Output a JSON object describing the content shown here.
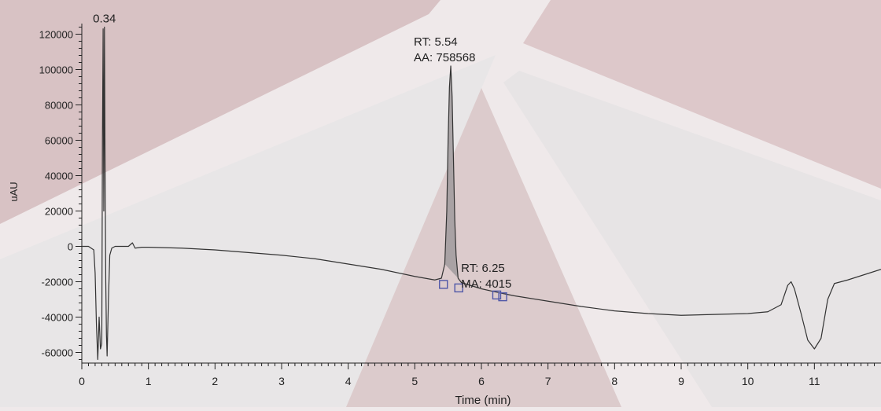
{
  "chart_data": {
    "type": "line",
    "title": "",
    "xlabel": "Time (min)",
    "ylabel": "uAU",
    "xlim": [
      0,
      12
    ],
    "ylim": [
      -66000,
      126000
    ],
    "x_ticks": [
      0,
      1,
      2,
      3,
      4,
      5,
      6,
      7,
      8,
      9,
      10,
      11
    ],
    "x_tick_labels": [
      "0",
      "1",
      "2",
      "3",
      "4",
      "5",
      "6",
      "7",
      "8",
      "9",
      "10",
      "11"
    ],
    "y_ticks": [
      -60000,
      -40000,
      -20000,
      0,
      20000,
      40000,
      60000,
      80000,
      100000,
      120000
    ],
    "y_tick_labels": [
      "-60000",
      "-40000",
      "-20000",
      "0",
      "20000",
      "40000",
      "60000",
      "80000",
      "100000",
      "120000"
    ],
    "grid": false,
    "legend": "none",
    "colors": {
      "trace": "#333333",
      "peak_fill": "#a39da0",
      "marker": "#5058a8",
      "background": "#efe9ea"
    },
    "series": [
      {
        "x": [
          0,
          0.1,
          0.18,
          0.2,
          0.22,
          0.24,
          0.26,
          0.28,
          0.3,
          0.31,
          0.32,
          0.33,
          0.34,
          0.35,
          0.36,
          0.37,
          0.38,
          0.4,
          0.42,
          0.45,
          0.5,
          0.6,
          0.7,
          0.76,
          0.8,
          0.9,
          1.0,
          1.5,
          2.0,
          2.5,
          3.0,
          3.5,
          4.0,
          4.5,
          5.0,
          5.3,
          5.4,
          5.45,
          5.48,
          5.5,
          5.52,
          5.54,
          5.56,
          5.58,
          5.6,
          5.62,
          5.65,
          5.7,
          6.0,
          6.3,
          6.5,
          7.0,
          7.5,
          8.0,
          8.5,
          9.0,
          9.5,
          10.0,
          10.3,
          10.5,
          10.6,
          10.65,
          10.7,
          10.8,
          10.9,
          11.0,
          11.1,
          11.2,
          11.3,
          11.5,
          12.0
        ],
        "y": [
          0,
          0,
          -2000,
          -15000,
          -45000,
          -64000,
          -40000,
          -58000,
          -55000,
          60000,
          123000,
          20000,
          124000,
          40000,
          -20000,
          -50000,
          -62000,
          -30000,
          -5000,
          -1000,
          0,
          0,
          0,
          2000,
          -1000,
          -500,
          -500,
          -1000,
          -2000,
          -3500,
          -5000,
          -7000,
          -10000,
          -13000,
          -17000,
          -19000,
          -18000,
          -10000,
          20000,
          60000,
          90000,
          102000,
          85000,
          50000,
          15000,
          -5000,
          -18000,
          -20500,
          -24000,
          -26500,
          -28000,
          -31000,
          -34000,
          -36500,
          -38000,
          -39000,
          -38500,
          -38000,
          -37000,
          -33000,
          -22000,
          -20000,
          -24000,
          -38000,
          -53000,
          -58000,
          -52000,
          -30000,
          -21000,
          -19000,
          -13000
        ]
      }
    ],
    "annotations": [
      {
        "lines": [
          "0.34"
        ],
        "x": 0.34,
        "y": 124000
      },
      {
        "lines": [
          "RT: 5.54",
          "AA: 758568"
        ],
        "x": 5.54,
        "y": 102000
      },
      {
        "lines": [
          "RT: 6.25",
          "MA: 4015"
        ],
        "x": 6.25,
        "y": -26000
      }
    ],
    "peak_markers": [
      {
        "x": 5.43,
        "y": -21500
      },
      {
        "x": 5.66,
        "y": -23500
      },
      {
        "x": 6.23,
        "y": -27500
      },
      {
        "x": 6.32,
        "y": -28500
      }
    ],
    "integrated_peak": {
      "x_start": 5.43,
      "x_end": 5.66
    }
  }
}
